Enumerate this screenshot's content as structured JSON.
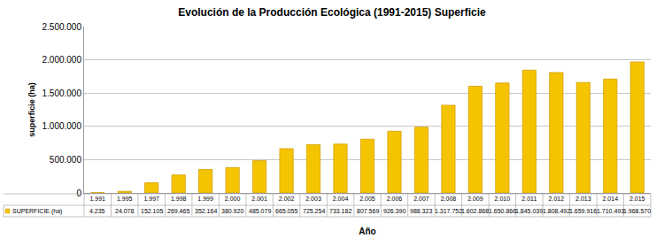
{
  "chart_data": {
    "type": "bar",
    "title": "Evolución de la Producción Ecológica (1991-2015) Superficie",
    "x_label": "Año",
    "y_label": "superficie (ha)",
    "categories": [
      "1.991",
      "1.995",
      "1.997",
      "1.998",
      "1.999",
      "2.000",
      "2.001",
      "2.002",
      "2.003",
      "2.004",
      "2.005",
      "2.006",
      "2.007",
      "2.008",
      "2.009",
      "2.010",
      "2.011",
      "2.012",
      "2.013",
      "2.014",
      "2.015"
    ],
    "series": [
      {
        "name": "SUPERFICIE (ha)",
        "color": "#f5c400",
        "values": [
          4235,
          24078,
          152105,
          269465,
          352164,
          380920,
          485079,
          665055,
          725254,
          733182,
          807569,
          926390,
          988323,
          1317752,
          1602868,
          1650866,
          1845039,
          1808492,
          1659916,
          1710493,
          1968570
        ],
        "value_labels": [
          "4.235",
          "24.078",
          "152.105",
          "269.465",
          "352.164",
          "380.920",
          "485.079",
          "665.055",
          "725.254",
          "733.182",
          "807.569",
          "926.390",
          "988.323",
          "1.317.752",
          "1.602.868",
          "1.650.866",
          "1.845.039",
          "1.808.492",
          "1.659.916",
          "1.710.493",
          "1.968.570"
        ]
      }
    ],
    "ylim": [
      0,
      2500000
    ],
    "yticks": [
      0,
      {
        "value": 500000,
        "label": "500.000"
      },
      {
        "value": 1000000,
        "label": "1.000.000"
      },
      {
        "value": 1500000,
        "label": "1.500.000"
      },
      {
        "value": 2000000,
        "label": "2.000.000"
      },
      {
        "value": 2500000,
        "label": "2.500.000"
      }
    ],
    "grid": true,
    "data_labels": true
  }
}
